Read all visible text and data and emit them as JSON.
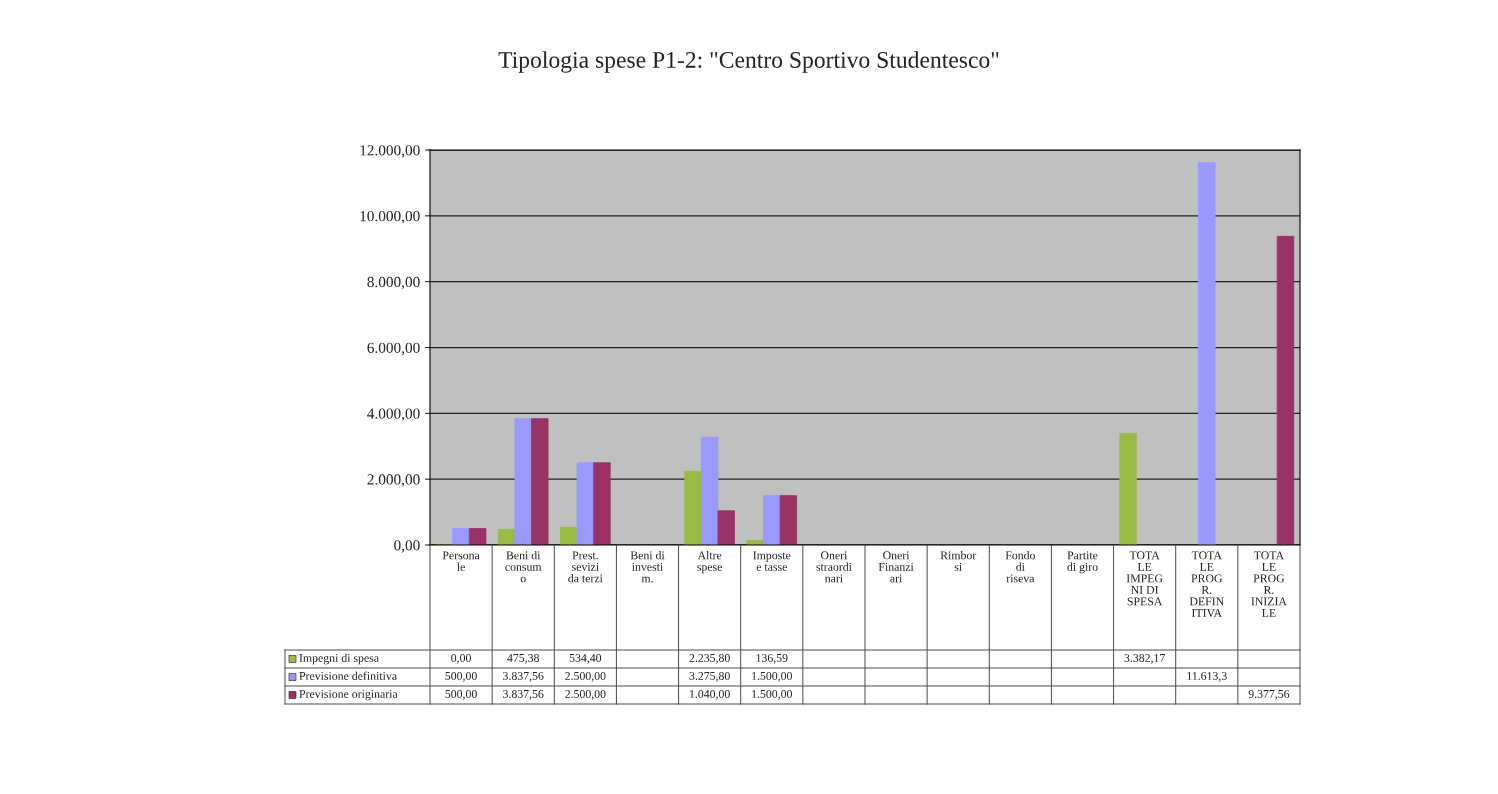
{
  "chart_data": {
    "type": "bar",
    "title": "Tipologia spese P1-2: \"Centro Sportivo Studentesco\"",
    "categories": [
      "Persona\nle",
      "Beni di\nconsum\no",
      "Prest.\nsevizi\nda terzi",
      "Beni di\ninvesti\nm.",
      "Altre\nspese",
      "Imposte\ne tasse",
      "Oneri\nstraordi\nnari",
      "Oneri\nFinanzi\nari",
      "Rimbor\nsi",
      "Fondo\ndi\nriseva",
      "Partite\ndi giro",
      "TOTA\nLE\nIMPEG\nNI DI\nSPESA",
      "TOTA\nLE\nPROG\nR.\nDEFIN\nITIVA",
      "TOTA\nLE\nPROG\nR.\nINIZIA\nLE"
    ],
    "series": [
      {
        "name": "Impegni di spesa",
        "color": "#99bb44",
        "values": [
          0,
          475.38,
          534.4,
          null,
          2235.8,
          136.59,
          null,
          null,
          null,
          null,
          null,
          3382.17,
          null,
          null
        ],
        "value_labels": [
          "0,00",
          "475,38",
          "534,40",
          null,
          "2.235,80",
          "136,59",
          null,
          null,
          null,
          null,
          null,
          "3.382,17",
          null,
          null
        ]
      },
      {
        "name": "Previsione definitiva",
        "color": "#9999ff",
        "values": [
          500,
          3837.56,
          2500,
          null,
          3275.8,
          1500,
          null,
          null,
          null,
          null,
          null,
          null,
          11613.3,
          null
        ],
        "value_labels": [
          "500,00",
          "3.837,56",
          "2.500,00",
          null,
          "3.275,80",
          "1.500,00",
          null,
          null,
          null,
          null,
          null,
          null,
          "11.613,3",
          null
        ]
      },
      {
        "name": "Previsione originaria",
        "color": "#993366",
        "values": [
          500,
          3837.56,
          2500,
          null,
          1040,
          1500,
          null,
          null,
          null,
          null,
          null,
          null,
          null,
          9377.56
        ],
        "value_labels": [
          "500,00",
          "3.837,56",
          "2.500,00",
          null,
          "1.040,00",
          "1.500,00",
          null,
          null,
          null,
          null,
          null,
          null,
          null,
          "9.377,56"
        ]
      }
    ],
    "ylim": [
      0,
      12000
    ],
    "yticks": [
      {
        "value": 0,
        "label": "0,00"
      },
      {
        "value": 2000,
        "label": "2.000,00"
      },
      {
        "value": 4000,
        "label": "4.000,00"
      },
      {
        "value": 6000,
        "label": "6.000,00"
      },
      {
        "value": 8000,
        "label": "8.000,00"
      },
      {
        "value": 10000,
        "label": "10.000,00"
      },
      {
        "value": 12000,
        "label": "12.000,00"
      }
    ],
    "grid": "y",
    "legend": "bottom left"
  }
}
